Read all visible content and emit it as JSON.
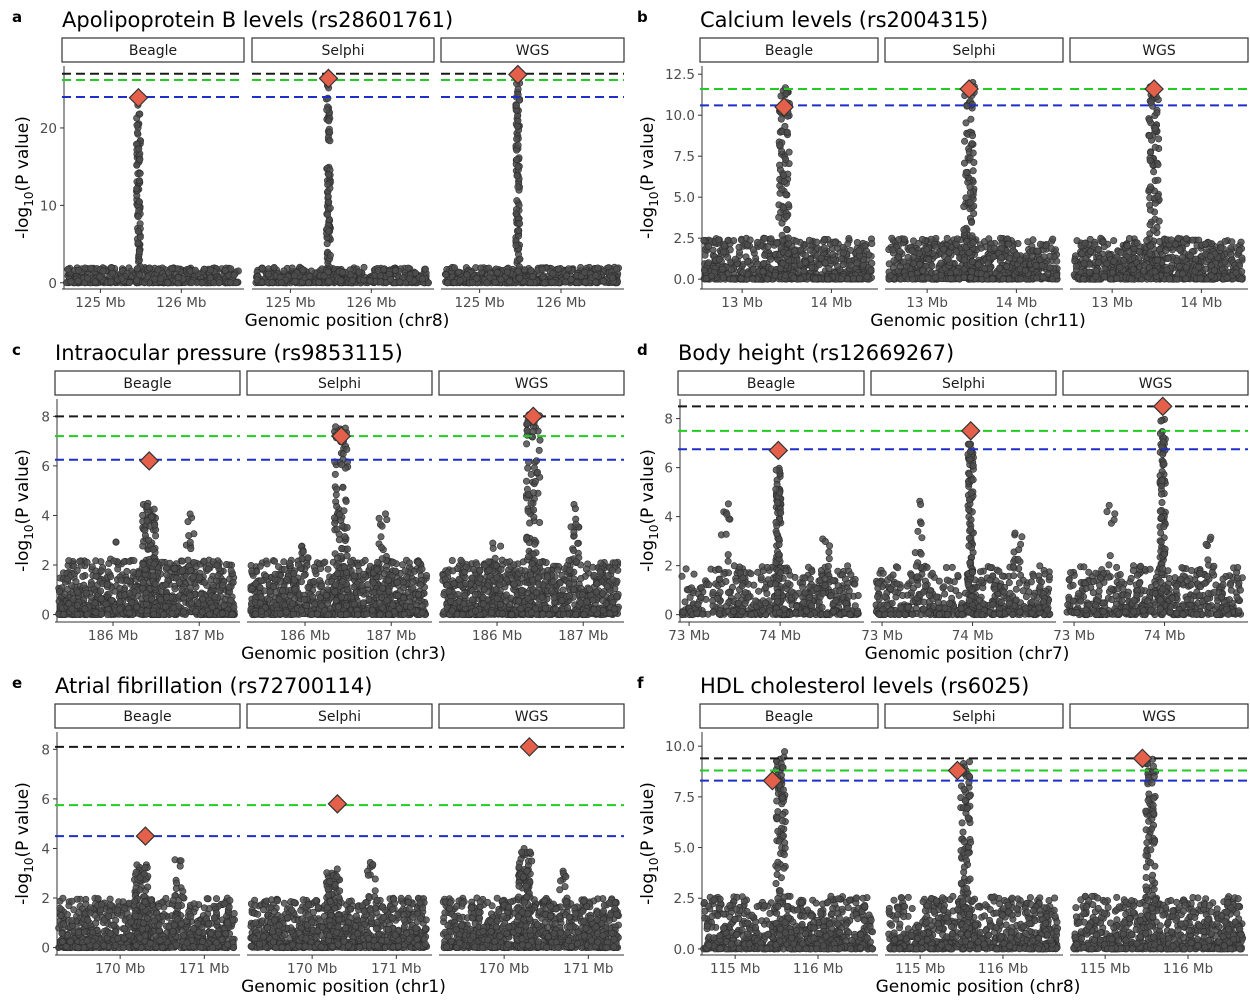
{
  "colors": {
    "point": "#4d4d4d",
    "lead_snp": "#E5604A",
    "threshold_black": "#1a1a1a",
    "threshold_green": "#22cc22",
    "threshold_blue": "#1e2ec8"
  },
  "ylabel_prefix": "-log",
  "ylabel_sub": "10",
  "ylabel_suffix": "(P value)",
  "chart_data": [
    {
      "panel": "a",
      "type": "scatter",
      "title": "Apolipoprotein B levels (rs28601761)",
      "xlabel": "Genomic position (chr8)",
      "facets": [
        "Beagle",
        "Selphi",
        "WGS"
      ],
      "xlim": [
        124.55,
        126.75
      ],
      "xticks": [
        125,
        126
      ],
      "xtick_labels": [
        "125 Mb",
        "126 Mb"
      ],
      "ylim": [
        -0.8,
        28
      ],
      "yticks": [
        0,
        10,
        20
      ],
      "ytick_labels": [
        "0",
        "10",
        "20"
      ],
      "thresholds": {
        "black": 27.0,
        "green": 26.2,
        "blue": 24.0
      },
      "lead_x": 125.47,
      "lead_y": [
        23.9,
        26.4,
        26.9
      ],
      "peak_center": 125.47,
      "peak_height": [
        23,
        26,
        26.5
      ],
      "peak_width": 0.025,
      "background_max": 2.0,
      "secondary_peaks": [],
      "n_points": 520
    },
    {
      "panel": "b",
      "type": "scatter",
      "title": "Calcium levels (rs2004315)",
      "xlabel": "Genomic position (chr11)",
      "facets": [
        "Beagle",
        "Selphi",
        "WGS"
      ],
      "xlim": [
        12.55,
        14.5
      ],
      "xticks": [
        13,
        14
      ],
      "xtick_labels": [
        "13 Mb",
        "14 Mb"
      ],
      "ylim": [
        -0.6,
        13.0
      ],
      "yticks": [
        0,
        2.5,
        5,
        7.5,
        10,
        12.5
      ],
      "ytick_labels": [
        "0.0",
        "2.5",
        "5.0",
        "7.5",
        "10.0",
        "12.5"
      ],
      "thresholds": {
        "black": null,
        "green": 11.6,
        "blue": 10.6
      },
      "lead_x": 13.47,
      "lead_y": [
        10.5,
        11.6,
        11.6
      ],
      "peak_center": 13.47,
      "peak_height": [
        12.0,
        12.0,
        11.8
      ],
      "peak_width": 0.06,
      "background_max": 2.5,
      "secondary_peaks": [],
      "n_points": 700
    },
    {
      "panel": "c",
      "type": "scatter",
      "title": "Intraocular pressure (rs9853115)",
      "xlabel": "Genomic position (chr3)",
      "facets": [
        "Beagle",
        "Selphi",
        "WGS"
      ],
      "xlim": [
        185.35,
        187.45
      ],
      "xticks": [
        186,
        187
      ],
      "xtick_labels": [
        "186 Mb",
        "187 Mb"
      ],
      "ylim": [
        -0.3,
        8.7
      ],
      "yticks": [
        0,
        2,
        4,
        6,
        8
      ],
      "ytick_labels": [
        "0",
        "2",
        "4",
        "6",
        "8"
      ],
      "thresholds": {
        "black": 8.0,
        "green": 7.2,
        "blue": 6.25
      },
      "lead_x": 186.42,
      "lead_y": [
        6.2,
        7.2,
        8.0
      ],
      "peak_center": 186.42,
      "peak_height": [
        4.5,
        7.6,
        8.1
      ],
      "peak_width": 0.08,
      "background_max": 2.2,
      "secondary_peaks": [
        [
          186.9,
          4.5
        ],
        [
          186.0,
          3.0
        ]
      ],
      "n_points": 900
    },
    {
      "panel": "d",
      "type": "scatter",
      "title": "Body height (rs12669267)",
      "xlabel": "Genomic position (chr7)",
      "facets": [
        "Beagle",
        "Selphi",
        "WGS"
      ],
      "xlim": [
        72.9,
        74.9
      ],
      "xticks": [
        73,
        74
      ],
      "xtick_labels": [
        "73 Mb",
        "74 Mb"
      ],
      "ylim": [
        -0.3,
        8.8
      ],
      "yticks": [
        0,
        2,
        4,
        6,
        8
      ],
      "ytick_labels": [
        "0",
        "2",
        "4",
        "6",
        "8"
      ],
      "thresholds": {
        "black": 8.5,
        "green": 7.5,
        "blue": 6.75
      },
      "lead_x": 73.98,
      "lead_y": [
        6.7,
        7.5,
        8.5
      ],
      "peak_center": 73.98,
      "peak_height": [
        6.0,
        7.0,
        8.0
      ],
      "peak_width": 0.03,
      "background_max": 2.0,
      "secondary_peaks": [
        [
          73.4,
          4.8
        ],
        [
          74.5,
          3.5
        ]
      ],
      "n_points": 500
    },
    {
      "panel": "e",
      "type": "scatter",
      "title": "Atrial fibrillation (rs72700114)",
      "xlabel": "Genomic position (chr1)",
      "facets": [
        "Beagle",
        "Selphi",
        "WGS"
      ],
      "xlim": [
        169.25,
        171.4
      ],
      "xticks": [
        170,
        171
      ],
      "xtick_labels": [
        "170 Mb",
        "171 Mb"
      ],
      "ylim": [
        -0.3,
        8.7
      ],
      "yticks": [
        0,
        2,
        4,
        6,
        8
      ],
      "ytick_labels": [
        "0",
        "2",
        "4",
        "6",
        "8"
      ],
      "thresholds": {
        "black": 8.1,
        "green": 5.75,
        "blue": 4.5
      },
      "lead_x": 170.3,
      "lead_y": [
        4.5,
        5.8,
        8.1
      ],
      "peak_center": 170.25,
      "peak_height": [
        3.4,
        3.2,
        4.0
      ],
      "peak_width": 0.08,
      "background_max": 2.0,
      "secondary_peaks": [
        [
          170.7,
          3.7
        ]
      ],
      "n_points": 900
    },
    {
      "panel": "f",
      "type": "scatter",
      "title": "HDL cholesterol levels (rs6025)",
      "xlabel": "Genomic position (chr8)",
      "facets": [
        "Beagle",
        "Selphi",
        "WGS"
      ],
      "xlim": [
        114.6,
        116.7
      ],
      "xticks": [
        115,
        116
      ],
      "xtick_labels": [
        "115 Mb",
        "116 Mb"
      ],
      "ylim": [
        -0.3,
        10.7
      ],
      "yticks": [
        0,
        2.5,
        5,
        7.5,
        10
      ],
      "ytick_labels": [
        "0.0",
        "2.5",
        "5.0",
        "7.5",
        "10.0"
      ],
      "thresholds": {
        "black": 9.4,
        "green": 8.8,
        "blue": 8.3
      },
      "lead_x": 115.45,
      "lead_y": [
        8.3,
        8.8,
        9.4
      ],
      "peak_center": 115.55,
      "peak_height": [
        10.0,
        9.5,
        9.4
      ],
      "peak_width": 0.06,
      "background_max": 2.6,
      "secondary_peaks": [],
      "n_points": 700
    }
  ]
}
